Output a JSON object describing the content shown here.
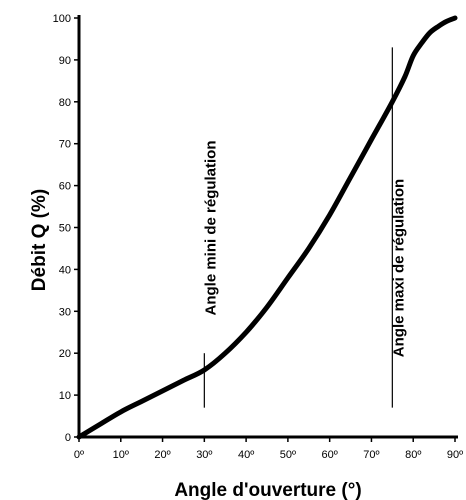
{
  "chart_data": {
    "type": "line",
    "xlabel": "Angle d'ouverture (°)",
    "ylabel": "Débit Q (%)",
    "xlim": [
      0,
      90
    ],
    "ylim": [
      0,
      100
    ],
    "x_ticks": [
      "0º",
      "10º",
      "20º",
      "30º",
      "40º",
      "50º",
      "60º",
      "70º",
      "80º",
      "90º"
    ],
    "y_ticks": [
      "0",
      "10",
      "20",
      "30",
      "40",
      "50",
      "60",
      "70",
      "80",
      "90",
      "100"
    ],
    "grid": false,
    "series": [
      {
        "x": [
          0,
          5,
          10,
          15,
          20,
          25,
          30,
          35,
          40,
          45,
          50,
          55,
          60,
          65,
          70,
          75,
          78,
          80,
          82,
          84,
          86,
          88,
          90
        ],
        "y": [
          0,
          3,
          6,
          8.5,
          11,
          13.5,
          16,
          20,
          25,
          31,
          38,
          45,
          53,
          62,
          71,
          80,
          86,
          91,
          94,
          96.5,
          98,
          99.2,
          100
        ]
      }
    ],
    "annotations": [
      {
        "text": "Angle mini de régulation",
        "x": 30,
        "y_range": [
          7,
          20
        ]
      },
      {
        "text": "Angle maxi de régulation",
        "x": 75,
        "y_range": [
          7,
          93
        ]
      }
    ]
  }
}
